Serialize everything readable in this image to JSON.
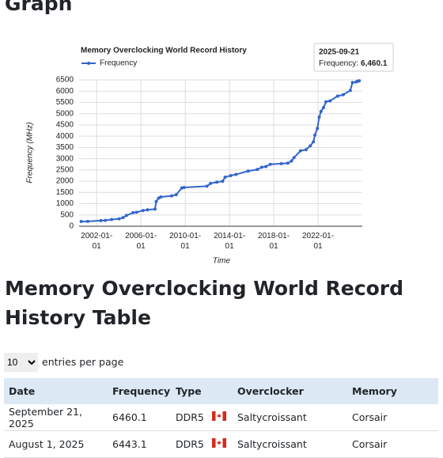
{
  "headings": [
    "Graph",
    "Memory Overclocking World Record History Table"
  ],
  "chart_data": {
    "type": "line",
    "title": "Memory Overclocking World Record History",
    "x_label": "Time",
    "y_label": "Frequency (MHz)",
    "x": [
      "2000-08-10",
      "2001-03-15",
      "2002-05-20",
      "2002-10-15",
      "2003-05-10",
      "2004-01-10",
      "2004-05-20",
      "2004-09-10",
      "2005-04-15",
      "2005-08-10",
      "2006-03-10",
      "2006-08-05",
      "2007-04-10",
      "2007-05-20",
      "2007-08-10",
      "2007-10-20",
      "2008-10-10",
      "2009-03-10",
      "2009-09-10",
      "2009-11-25",
      "2011-12-20",
      "2012-04-15",
      "2012-11-10",
      "2013-05-20",
      "2013-08-10",
      "2014-02-10",
      "2014-08-05",
      "2015-09-10",
      "2016-07-10",
      "2016-12-01",
      "2017-04-15",
      "2017-09-10",
      "2018-09-10",
      "2019-04-10",
      "2019-08-10",
      "2019-11-01",
      "2020-06-01",
      "2020-12-01",
      "2021-04-20",
      "2021-08-01",
      "2021-09-20",
      "2021-12-10",
      "2022-02-10",
      "2022-04-10",
      "2022-07-01",
      "2022-09-20",
      "2023-02-01",
      "2023-10-10",
      "2024-04-10",
      "2024-12-01",
      "2025-02-10",
      "2025-06-20",
      "2025-08-01",
      "2025-09-21"
    ],
    "series": [
      {
        "name": "Frequency",
        "color": "#3366cc",
        "values": [
          210,
          215,
          250,
          260,
          300,
          330,
          380,
          480,
          600,
          620,
          700,
          730,
          760,
          1100,
          1250,
          1300,
          1350,
          1400,
          1700,
          1720,
          1780,
          1900,
          1960,
          2000,
          2180,
          2250,
          2300,
          2450,
          2520,
          2620,
          2650,
          2750,
          2780,
          2800,
          2900,
          3050,
          3350,
          3400,
          3570,
          3750,
          4050,
          4350,
          4850,
          5100,
          5270,
          5530,
          5570,
          5780,
          5840,
          6030,
          6380,
          6410,
          6443.1,
          6460.1
        ]
      }
    ],
    "xlim": [
      "2000-06-01",
      "2026-01-01"
    ],
    "xticks": [
      "2002-01-01",
      "2006-01-01",
      "2010-01-01",
      "2014-01-01",
      "2018-01-01",
      "2022-01-01"
    ],
    "ylim": [
      0,
      6500
    ],
    "yticks": [
      0,
      500,
      1000,
      1500,
      2000,
      2500,
      3000,
      3500,
      4000,
      4500,
      5000,
      5500,
      6000,
      6500
    ],
    "grid": true,
    "legend": "top-left",
    "tooltip": {
      "title": "2025-09-21",
      "label": "Frequency:",
      "value": "6,460.1"
    }
  },
  "page_size": {
    "value": "10",
    "label": "entries per page"
  },
  "table": {
    "columns": [
      "Date",
      "Frequency",
      "Type",
      "Overclocker",
      "Memory"
    ],
    "rows": [
      [
        "September 21, 2025",
        "6460.1",
        "DDR5",
        "Saltycroissant",
        "Corsair"
      ],
      [
        "August 1, 2025",
        "6443.1",
        "DDR5",
        "Saltycroissant",
        "Corsair"
      ]
    ]
  }
}
